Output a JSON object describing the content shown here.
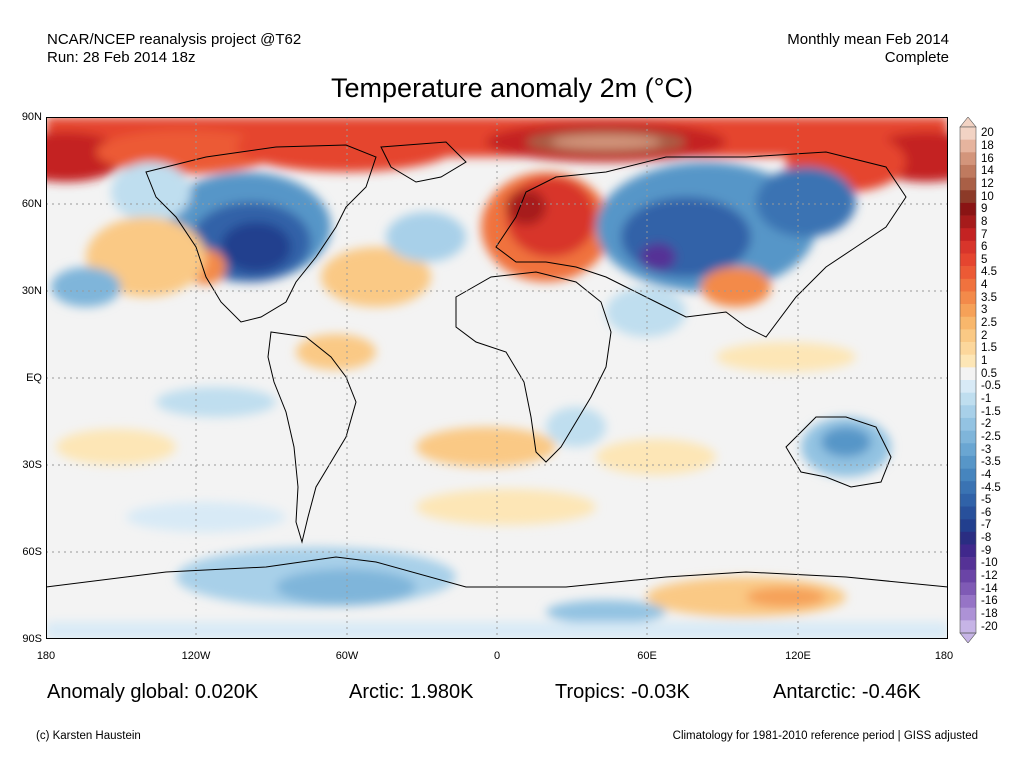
{
  "header": {
    "source": "NCAR/NCEP reanalysis project @T62",
    "run": "Run: 28 Feb 2014 18z",
    "period": "Monthly mean Feb 2014",
    "status": "Complete"
  },
  "title": "Temperature anomaly 2m (°C)",
  "lat_labels": [
    "90N",
    "60N",
    "30N",
    "EQ",
    "30S",
    "60S",
    "90S"
  ],
  "lon_labels": [
    "180",
    "120W",
    "60W",
    "0",
    "60E",
    "120E",
    "180"
  ],
  "colorbar": {
    "labels": [
      "20",
      "18",
      "16",
      "14",
      "12",
      "10",
      "9",
      "8",
      "7",
      "6",
      "5",
      "4.5",
      "4",
      "3.5",
      "3",
      "2.5",
      "2",
      "1.5",
      "1",
      "0.5",
      "-0.5",
      "-1",
      "-1.5",
      "-2",
      "-2.5",
      "-3",
      "-3.5",
      "-4",
      "-4.5",
      "-5",
      "-6",
      "-7",
      "-8",
      "-9",
      "-10",
      "-12",
      "-14",
      "-16",
      "-18",
      "-20"
    ],
    "colors": [
      "#f2d3c4",
      "#e6b49e",
      "#d3957b",
      "#bf7a5f",
      "#a95f46",
      "#8c3a28",
      "#8a1414",
      "#a61b1b",
      "#c42323",
      "#d8352b",
      "#e5452f",
      "#ec5a35",
      "#f0723e",
      "#f38a4a",
      "#f6a158",
      "#f8b76c",
      "#fac985",
      "#fcd79c",
      "#fde6b6",
      "#f3f3f3",
      "#d8eaf6",
      "#bfdeef",
      "#a8d0e9",
      "#93c3e2",
      "#7fb5da",
      "#6aa6d2",
      "#5796c8",
      "#4685be",
      "#3a73b3",
      "#3062a8",
      "#28509b",
      "#223f8e",
      "#2a2d82",
      "#40288c",
      "#553296",
      "#6a44a6",
      "#7f5ab5",
      "#9674c6",
      "#ad92d6",
      "#c6b4e6"
    ]
  },
  "stats": {
    "global": "Anomaly global: 0.020K",
    "arctic": "Arctic: 1.980K",
    "tropics": "Tropics: -0.03K",
    "antarctic": "Antarctic: -0.46K"
  },
  "footer": {
    "credit": "(c) Karsten Haustein",
    "note": "Climatology for 1981-2010 reference period | GISS adjusted"
  }
}
